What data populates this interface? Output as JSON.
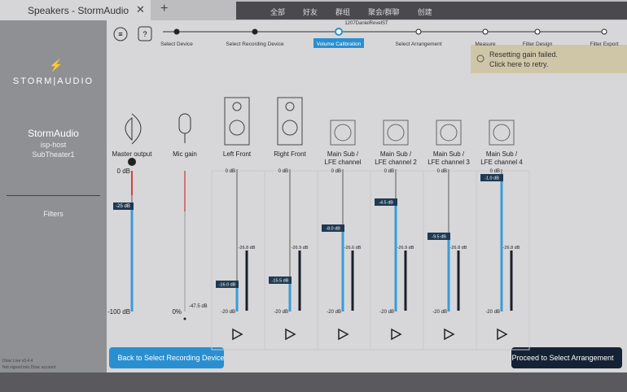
{
  "window": {
    "title": "Speakers - StormAudio",
    "overlay_menu": [
      "全部",
      "好友",
      "群组",
      "聚会/群聊",
      "创建"
    ]
  },
  "sidebar": {
    "brand": "STORM|AUDIO",
    "name": "StormAudio",
    "host": "isp-host",
    "theater": "SubTheater1",
    "menu": [
      "Filters"
    ],
    "footer": [
      "Dirac Live v3.4.4",
      "Not signed into Dirac account"
    ]
  },
  "steps": {
    "device": "1207DanielRevelST",
    "items": [
      "Select Device",
      "Select Recording Device",
      "Volume Calibration",
      "Select Arrangement",
      "Measure",
      "Filter Design",
      "Filter Export"
    ]
  },
  "notification": {
    "line1": "Resetting gain failed.",
    "line2": "Click here to retry."
  },
  "master": {
    "label": "Master output",
    "top": "0 dB",
    "bottom": "-100 dB",
    "value": "-25 dB"
  },
  "mic": {
    "label": "Mic gain",
    "bottom": "0%",
    "value": "-47.5 dB"
  },
  "channels": [
    {
      "name": "Left Front",
      "top": "0 dB",
      "bottom": "-20 dB",
      "gain": "-16.0 dB",
      "level": "-26.8 dB"
    },
    {
      "name": "Right Front",
      "top": "0 dB",
      "bottom": "-20 dB",
      "gain": "-15.5 dB",
      "level": "-26.9 dB"
    },
    {
      "name": "Main Sub / LFE channel",
      "top": "0 dB",
      "bottom": "-20 dB",
      "gain": "-8.0 dB",
      "level": "-26.6 dB"
    },
    {
      "name": "Main Sub / LFE channel 2",
      "top": "0 dB",
      "bottom": "-20 dB",
      "gain": "-4.5 dB",
      "level": "-26.9 dB"
    },
    {
      "name": "Main Sub / LFE channel 3",
      "top": "0 dB",
      "bottom": "-20 dB",
      "gain": "-9.5 dB",
      "level": "-26.8 dB"
    },
    {
      "name": "Main Sub / LFE channel 4",
      "top": "0 dB",
      "bottom": "-20 dB",
      "gain": "-1.0 dB",
      "level": "-26.8 dB"
    }
  ],
  "buttons": {
    "back": "Back to Select Recording Device",
    "next": "Proceed to Select Arrangement"
  }
}
